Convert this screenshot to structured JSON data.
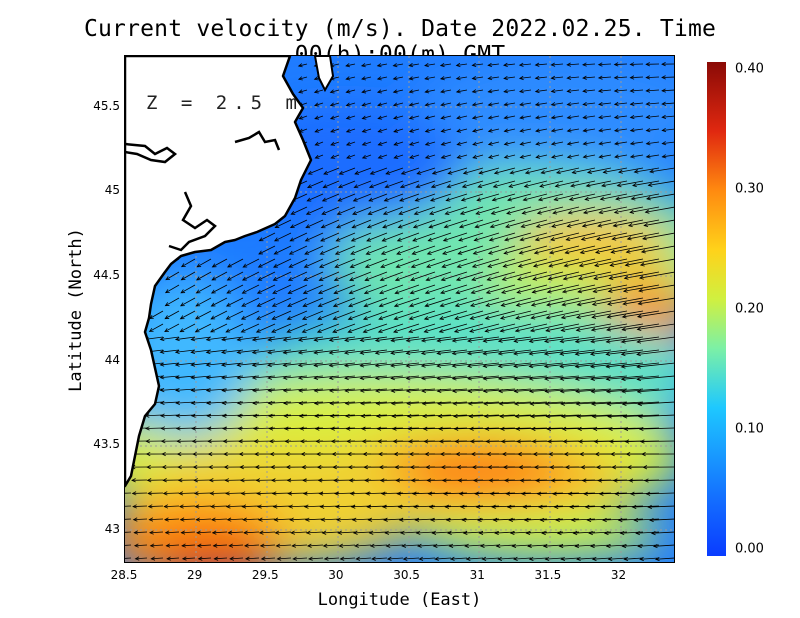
{
  "title": "Current velocity (m/s). Date 2022.02.25. Time 00(h):00(m) GMT",
  "depth_label": "Z = 2.5 m",
  "axes": {
    "xlabel": "Longitude (East)",
    "ylabel": "Latitude (North)",
    "xticks": [
      "28.5",
      "29",
      "29.5",
      "30",
      "30.5",
      "31",
      "31.5",
      "32"
    ],
    "yticks": [
      "45.5",
      "45",
      "44.5",
      "44",
      "43.5",
      "43"
    ],
    "xlim": [
      28.5,
      32.4
    ],
    "ylim": [
      42.8,
      45.8
    ]
  },
  "colorbar": {
    "ticks": [
      "0.40",
      "0.30",
      "0.20",
      "0.10",
      "0.00"
    ],
    "range": [
      0.0,
      0.4
    ],
    "colors": [
      "#0a3cff",
      "#1ec8ff",
      "#7cf0a6",
      "#ffd21a",
      "#ff8a10",
      "#8a0a06"
    ]
  },
  "legend_colors": {
    "land": "#ffffff",
    "coastline": "#000000",
    "arrow": "#000000",
    "grid": "#9a9a9a"
  }
}
